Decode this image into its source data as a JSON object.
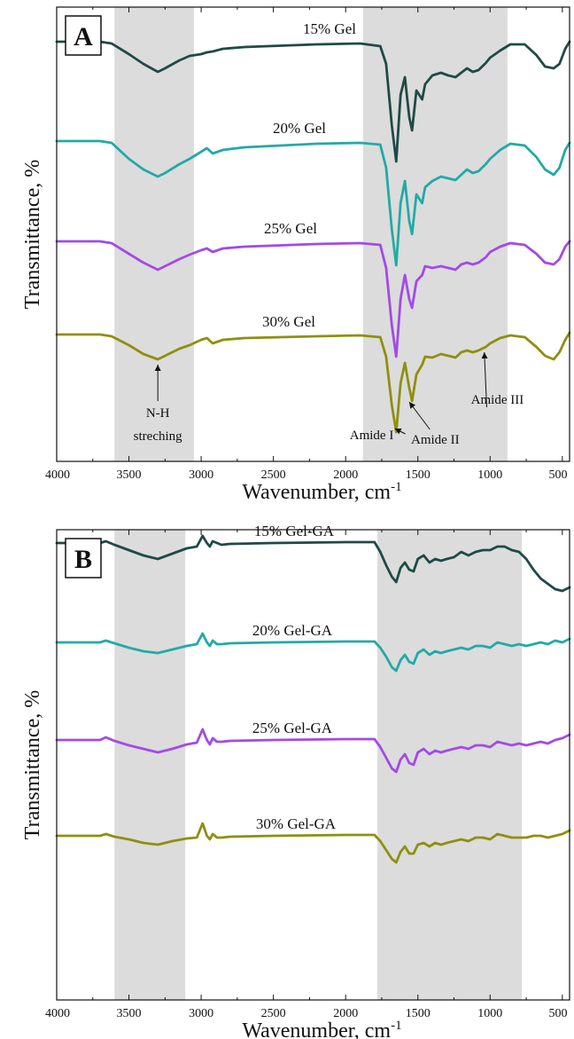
{
  "chart_data": [
    {
      "type": "line",
      "panel_label": "A",
      "xlabel": "Wavenumber, cm",
      "xlabel_sup": "-1",
      "ylabel": "Transmittance, %",
      "xlim": [
        4000,
        450
      ],
      "x_reversed": true,
      "xticks": [
        4000,
        3500,
        3000,
        2500,
        2000,
        1500,
        1000,
        500
      ],
      "shaded_regions": [
        [
          3600,
          3050
        ],
        [
          1880,
          880
        ]
      ],
      "series": [
        {
          "name": "15% Gel",
          "color": "#1f4a46",
          "offset": 0,
          "x": [
            4000,
            3700,
            3620,
            3500,
            3400,
            3300,
            3250,
            3150,
            3080,
            3000,
            2960,
            2920,
            2850,
            2700,
            2200,
            1900,
            1760,
            1720,
            1680,
            1650,
            1620,
            1590,
            1560,
            1540,
            1510,
            1470,
            1450,
            1400,
            1340,
            1290,
            1240,
            1200,
            1160,
            1120,
            1080,
            1030,
            1000,
            930,
            860,
            760,
            680,
            620,
            560,
            520,
            480,
            450
          ],
          "y": [
            0,
            0,
            -2,
            -14,
            -25,
            -34,
            -30,
            -21,
            -16,
            -14,
            -12,
            -11,
            -8,
            -6,
            -3,
            -2,
            -5,
            -25,
            -95,
            -135,
            -60,
            -40,
            -85,
            -100,
            -55,
            -65,
            -48,
            -38,
            -35,
            -38,
            -40,
            -35,
            -30,
            -34,
            -32,
            -24,
            -18,
            -10,
            -3,
            -3,
            -15,
            -28,
            -30,
            -25,
            -8,
            0
          ]
        },
        {
          "name": "20% Gel",
          "color": "#22aaa6",
          "offset": 112,
          "x": [
            4000,
            3700,
            3620,
            3500,
            3400,
            3300,
            3250,
            3150,
            3080,
            3000,
            2960,
            2920,
            2850,
            2700,
            2200,
            1900,
            1760,
            1720,
            1680,
            1650,
            1620,
            1590,
            1560,
            1540,
            1510,
            1470,
            1450,
            1400,
            1340,
            1290,
            1240,
            1200,
            1160,
            1120,
            1080,
            1030,
            1000,
            930,
            860,
            760,
            680,
            620,
            560,
            520,
            480,
            450
          ],
          "y": [
            0,
            0,
            -2,
            -20,
            -32,
            -40,
            -36,
            -26,
            -20,
            -12,
            -8,
            -14,
            -10,
            -7,
            -3,
            -2,
            -4,
            -30,
            -100,
            -140,
            -70,
            -45,
            -90,
            -105,
            -60,
            -70,
            -52,
            -45,
            -40,
            -42,
            -44,
            -38,
            -32,
            -36,
            -34,
            -26,
            -20,
            -10,
            -3,
            -5,
            -18,
            -32,
            -38,
            -30,
            -10,
            -2
          ]
        },
        {
          "name": "25% Gel",
          "color": "#a24ae8",
          "offset": 225,
          "x": [
            4000,
            3700,
            3620,
            3500,
            3400,
            3300,
            3250,
            3150,
            3080,
            3000,
            2960,
            2920,
            2850,
            2700,
            2200,
            1900,
            1760,
            1720,
            1680,
            1650,
            1620,
            1590,
            1560,
            1540,
            1510,
            1470,
            1450,
            1400,
            1340,
            1290,
            1240,
            1200,
            1160,
            1120,
            1080,
            1030,
            1000,
            930,
            860,
            760,
            680,
            620,
            560,
            520,
            480,
            450
          ],
          "y": [
            0,
            0,
            -2,
            -14,
            -24,
            -32,
            -28,
            -20,
            -15,
            -10,
            -8,
            -12,
            -8,
            -6,
            -3,
            -2,
            -4,
            -30,
            -95,
            -130,
            -65,
            -38,
            -65,
            -75,
            -45,
            -38,
            -28,
            -30,
            -28,
            -30,
            -32,
            -26,
            -24,
            -26,
            -24,
            -18,
            -12,
            -6,
            -2,
            -4,
            -14,
            -24,
            -26,
            -20,
            -6,
            0
          ]
        },
        {
          "name": "30% Gel",
          "color": "#8f8f10",
          "offset": 330,
          "x": [
            4000,
            3700,
            3620,
            3500,
            3400,
            3300,
            3250,
            3150,
            3080,
            3000,
            2960,
            2920,
            2850,
            2700,
            2200,
            1900,
            1760,
            1720,
            1680,
            1650,
            1620,
            1590,
            1560,
            1540,
            1510,
            1470,
            1450,
            1400,
            1340,
            1290,
            1240,
            1200,
            1160,
            1120,
            1080,
            1030,
            1000,
            930,
            860,
            760,
            680,
            620,
            560,
            520,
            480,
            450
          ],
          "y": [
            0,
            0,
            -2,
            -12,
            -22,
            -28,
            -24,
            -16,
            -12,
            -6,
            -4,
            -10,
            -6,
            -4,
            -2,
            -1,
            -3,
            -25,
            -80,
            -110,
            -55,
            -32,
            -60,
            -75,
            -45,
            -34,
            -25,
            -26,
            -22,
            -24,
            -26,
            -20,
            -18,
            -20,
            -18,
            -14,
            -10,
            -4,
            -1,
            -3,
            -14,
            -24,
            -28,
            -20,
            -6,
            2
          ]
        }
      ],
      "annotations": [
        {
          "lines": [
            "N-H",
            "streching"
          ],
          "at": [
            3300,
            -28
          ],
          "series": 3,
          "text_pos": [
            3300,
            470
          ]
        },
        {
          "lines": [
            "Amide I"
          ],
          "at": [
            1660,
            -100
          ],
          "series": 3,
          "text_pos": [
            1820,
            495
          ]
        },
        {
          "lines": [
            "Amide II"
          ],
          "at": [
            1560,
            -70
          ],
          "series": 3,
          "text_pos": [
            1380,
            500
          ]
        },
        {
          "lines": [
            "Amide III"
          ],
          "at": [
            1040,
            -14
          ],
          "series": 3,
          "text_pos": [
            950,
            455
          ]
        }
      ]
    },
    {
      "type": "line",
      "panel_label": "B",
      "xlabel": "Wavenumber, cm",
      "xlabel_sup": "-1",
      "ylabel": "Transmittance, %",
      "xlim": [
        4000,
        450
      ],
      "x_reversed": true,
      "xticks": [
        4000,
        3500,
        3000,
        2500,
        2000,
        1500,
        1000,
        500
      ],
      "shaded_regions": [
        [
          3600,
          3110
        ],
        [
          1780,
          780
        ]
      ],
      "series": [
        {
          "name": "15% Gel-GA",
          "color": "#1f4a46",
          "offset": 0,
          "x": [
            4000,
            3700,
            3660,
            3600,
            3500,
            3400,
            3300,
            3200,
            3100,
            3030,
            2990,
            2960,
            2940,
            2920,
            2890,
            2860,
            2800,
            2500,
            2000,
            1800,
            1760,
            1720,
            1680,
            1650,
            1620,
            1590,
            1560,
            1530,
            1500,
            1460,
            1420,
            1380,
            1340,
            1300,
            1250,
            1200,
            1150,
            1100,
            1050,
            1000,
            950,
            900,
            850,
            800,
            750,
            700,
            650,
            600,
            550,
            500,
            450
          ],
          "y": [
            0,
            0,
            2,
            -2,
            -8,
            -14,
            -18,
            -12,
            -6,
            -4,
            8,
            0,
            -4,
            2,
            0,
            -2,
            -1,
            0,
            1,
            1,
            -10,
            -25,
            -38,
            -44,
            -28,
            -22,
            -30,
            -32,
            -18,
            -14,
            -22,
            -18,
            -20,
            -18,
            -16,
            -10,
            -14,
            -10,
            -8,
            -8,
            -4,
            -4,
            -8,
            -10,
            -18,
            -30,
            -40,
            -46,
            -52,
            -54,
            -50
          ]
        },
        {
          "name": "20% Gel-GA",
          "color": "#22aaa6",
          "offset": 112,
          "x": [
            4000,
            3700,
            3660,
            3600,
            3500,
            3400,
            3300,
            3200,
            3100,
            3030,
            2990,
            2960,
            2940,
            2920,
            2890,
            2860,
            2800,
            2500,
            2000,
            1800,
            1760,
            1720,
            1680,
            1650,
            1620,
            1590,
            1560,
            1530,
            1500,
            1460,
            1420,
            1380,
            1340,
            1300,
            1250,
            1200,
            1150,
            1100,
            1050,
            1000,
            950,
            900,
            850,
            800,
            750,
            700,
            650,
            600,
            550,
            500,
            450
          ],
          "y": [
            0,
            0,
            2,
            -1,
            -6,
            -10,
            -12,
            -8,
            -4,
            -2,
            10,
            0,
            -4,
            2,
            -2,
            -2,
            -1,
            0,
            1,
            1,
            -6,
            -16,
            -28,
            -32,
            -20,
            -14,
            -22,
            -24,
            -12,
            -8,
            -14,
            -10,
            -12,
            -10,
            -8,
            -6,
            -8,
            -4,
            -4,
            -6,
            0,
            -2,
            -4,
            -2,
            -4,
            -2,
            0,
            -2,
            2,
            0,
            4
          ]
        },
        {
          "name": "25% Gel-GA",
          "color": "#a24ae8",
          "offset": 222,
          "x": [
            4000,
            3700,
            3660,
            3600,
            3500,
            3400,
            3300,
            3200,
            3100,
            3030,
            2990,
            2960,
            2940,
            2920,
            2890,
            2860,
            2800,
            2500,
            2000,
            1800,
            1760,
            1720,
            1680,
            1650,
            1620,
            1590,
            1560,
            1530,
            1500,
            1460,
            1420,
            1380,
            1340,
            1300,
            1250,
            1200,
            1150,
            1100,
            1050,
            1000,
            950,
            900,
            850,
            800,
            750,
            700,
            650,
            600,
            550,
            500,
            450
          ],
          "y": [
            0,
            0,
            3,
            -1,
            -6,
            -10,
            -14,
            -10,
            -5,
            -3,
            12,
            0,
            -5,
            2,
            -2,
            -2,
            -1,
            0,
            1,
            1,
            -8,
            -20,
            -32,
            -36,
            -22,
            -16,
            -26,
            -28,
            -14,
            -10,
            -16,
            -12,
            -14,
            -12,
            -10,
            -8,
            -10,
            -6,
            -6,
            -8,
            -2,
            -4,
            -6,
            -4,
            -6,
            -4,
            -2,
            -4,
            0,
            2,
            6
          ]
        },
        {
          "name": "30% Gel-GA",
          "color": "#8f8f10",
          "offset": 330,
          "x": [
            4000,
            3700,
            3660,
            3600,
            3500,
            3400,
            3300,
            3200,
            3100,
            3030,
            2990,
            2960,
            2940,
            2920,
            2890,
            2860,
            2800,
            2500,
            2000,
            1800,
            1760,
            1720,
            1680,
            1650,
            1620,
            1590,
            1560,
            1530,
            1500,
            1460,
            1420,
            1380,
            1340,
            1300,
            1250,
            1200,
            1150,
            1100,
            1050,
            1000,
            950,
            900,
            850,
            800,
            750,
            700,
            650,
            600,
            550,
            500,
            450
          ],
          "y": [
            0,
            0,
            2,
            -1,
            -4,
            -8,
            -10,
            -6,
            -3,
            -2,
            14,
            0,
            -4,
            2,
            -2,
            -2,
            -1,
            0,
            1,
            1,
            -6,
            -16,
            -26,
            -30,
            -18,
            -12,
            -20,
            -20,
            -10,
            -8,
            -12,
            -8,
            -10,
            -8,
            -6,
            -4,
            -6,
            -2,
            -2,
            -4,
            2,
            0,
            -2,
            -2,
            -2,
            0,
            0,
            -2,
            0,
            2,
            6
          ]
        }
      ],
      "annotations": []
    }
  ]
}
